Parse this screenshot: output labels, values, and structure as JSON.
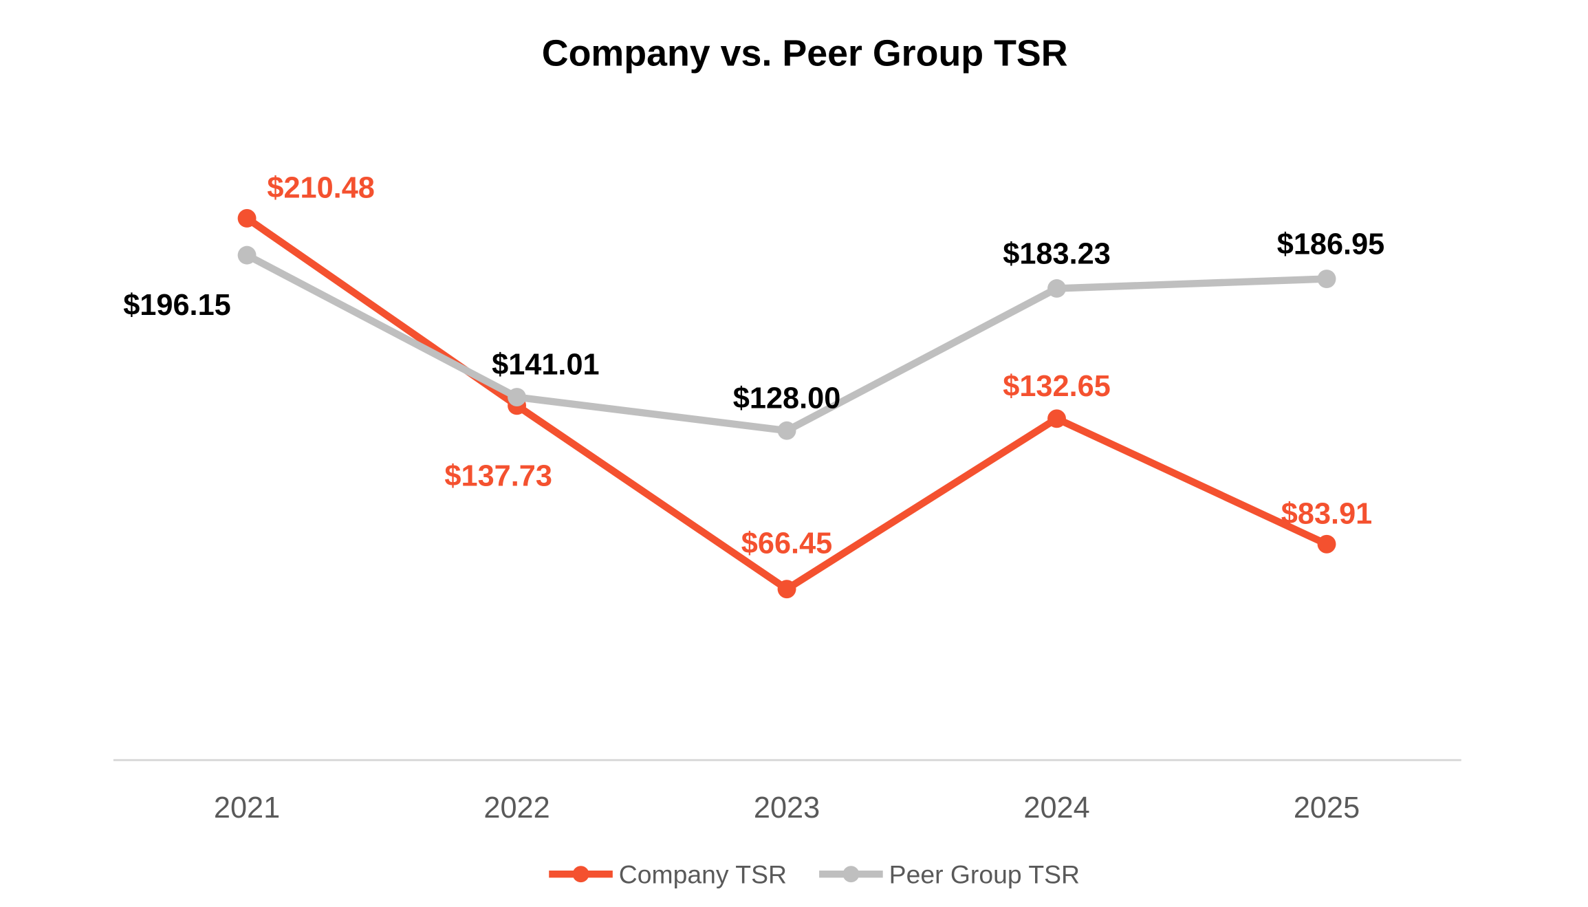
{
  "chart_data": {
    "type": "line",
    "title": "Company vs. Peer Group TSR",
    "categories": [
      "2021",
      "2022",
      "2023",
      "2024",
      "2025"
    ],
    "series": [
      {
        "name": "Company TSR",
        "color": "#F4512F",
        "values": [
          210.48,
          137.73,
          66.45,
          132.65,
          83.91
        ],
        "labels": [
          "$210.48",
          "$137.73",
          "$66.45",
          "$132.65",
          "$83.91"
        ]
      },
      {
        "name": "Peer Group TSR",
        "color": "#BFBFBF",
        "values": [
          196.15,
          141.01,
          128.0,
          183.23,
          186.95
        ],
        "labels": [
          "$196.15",
          "$141.01",
          "$128.00",
          "$183.23",
          "$186.95"
        ]
      }
    ],
    "ylim": [
      0,
      250
    ],
    "grid": false,
    "legend": "bottom",
    "label_colors": {
      "Company TSR": "#F4512F",
      "Peer Group TSR": "#000000"
    },
    "axis_color": "#D9D9D9",
    "tick_label_color": "#595959"
  }
}
